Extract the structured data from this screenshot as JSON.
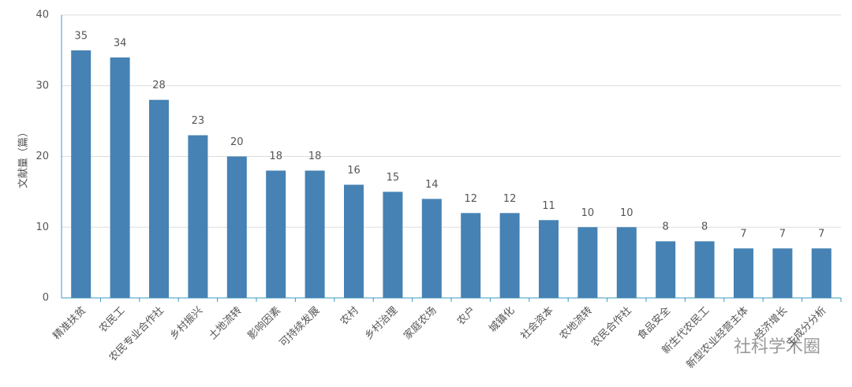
{
  "chart_data": {
    "type": "bar",
    "y_label": "文献量（篇）",
    "categories": [
      "精准扶贫",
      "农民工",
      "农民专业合作社",
      "乡村振兴",
      "土地流转",
      "影响因素",
      "可持续发展",
      "农村",
      "乡村治理",
      "家庭农场",
      "农户",
      "城镇化",
      "社会资本",
      "农地流转",
      "农民合作社",
      "食品安全",
      "新生代农民工",
      "新型农业经营主体",
      "经济增长",
      "主成分分析"
    ],
    "values": [
      35,
      34,
      28,
      23,
      20,
      18,
      18,
      16,
      15,
      14,
      12,
      12,
      11,
      10,
      10,
      8,
      8,
      7,
      7,
      7
    ],
    "color": "#4682b4",
    "ylim": [
      0,
      40
    ],
    "yticks": [
      0,
      10,
      20,
      30,
      40
    ],
    "grid": true
  },
  "watermark": "社科学术圈"
}
